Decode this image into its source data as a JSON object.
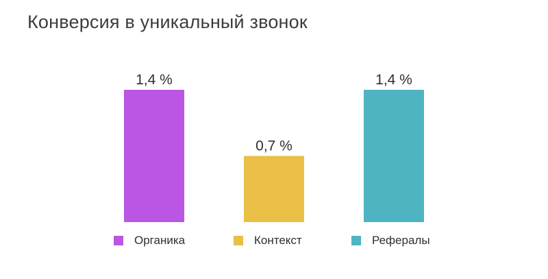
{
  "title": "Конверсия в уникальный звонок",
  "chart_data": {
    "type": "bar",
    "categories": [
      "Органика",
      "Контекст",
      "Рефералы"
    ],
    "values": [
      1.4,
      0.7,
      1.4
    ],
    "value_labels": [
      "1,4 %",
      "0,7 %",
      "1,4 %"
    ],
    "colors": [
      "#bb55e3",
      "#e9bf45",
      "#4fb4c2"
    ],
    "ylim": [
      0,
      1.4
    ],
    "grid": false,
    "legend_position": "bottom"
  }
}
